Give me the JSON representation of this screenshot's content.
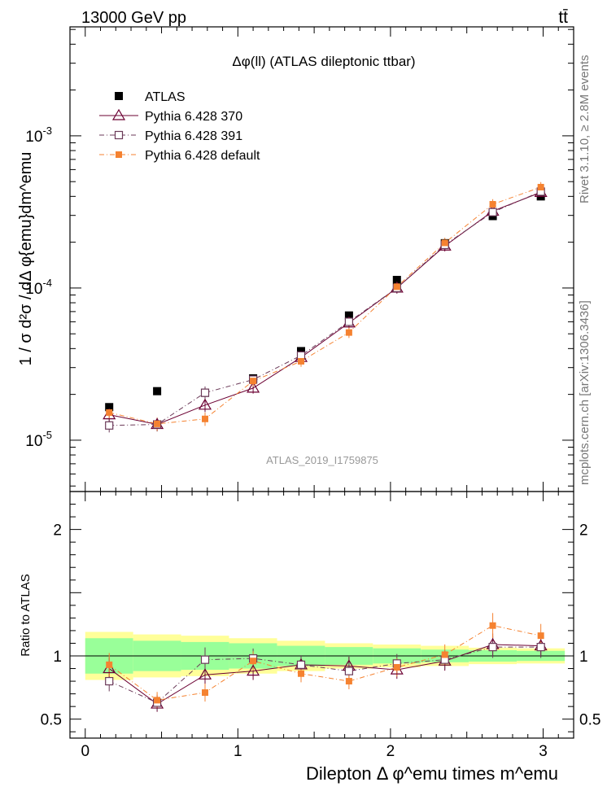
{
  "header": {
    "energy_label": "13000 GeV pp",
    "process_label": "tt̄"
  },
  "side_labels": {
    "rivet": "Rivet 3.1.10, ≥ 2.8M events",
    "mcplots": "mcplots.cern.ch [arXiv:1306.3436]"
  },
  "chart_data": {
    "type": "scatter",
    "title": "Δφ(ll) (ATLAS dileptonic ttbar)",
    "watermark": "ATLAS_2019_I1759875",
    "ylabel": "1 / σ d²σ / dΔ φ{emu}dm^emu",
    "ratio_ylabel": "Ratio to ATLAS",
    "xlabel": "Dilepton Δ φ^emu times m^emu",
    "xlim": [
      -0.1,
      3.2
    ],
    "ylim": [
      4.6e-06,
      0.0052
    ],
    "ratio_ylim": [
      0.35,
      2.3
    ],
    "x_ticks": [
      0,
      1,
      2,
      3
    ],
    "x_tick_labels": [
      "0",
      "1",
      "2",
      "3"
    ],
    "y_tick_labels": [
      "10^-5",
      "10^-4",
      "10^-3"
    ],
    "ratio_ticks": [
      0.5,
      1,
      2
    ],
    "ratio_tick_labels": [
      "0.5",
      "1",
      "2"
    ],
    "x": [
      0.157,
      0.471,
      0.785,
      1.1,
      1.414,
      1.728,
      2.042,
      2.356,
      2.67,
      2.985
    ],
    "bin_edges": [
      0,
      0.314,
      0.628,
      0.942,
      1.257,
      1.571,
      1.885,
      2.199,
      2.513,
      2.827,
      3.142
    ],
    "band_inner": [
      0.14,
      0.12,
      0.11,
      0.1,
      0.08,
      0.07,
      0.06,
      0.05,
      0.045,
      0.04
    ],
    "band_outer": [
      0.19,
      0.17,
      0.16,
      0.14,
      0.12,
      0.1,
      0.09,
      0.08,
      0.065,
      0.06
    ],
    "series": [
      {
        "name": "ATLAS",
        "marker": "filled-square",
        "color": "#000000",
        "values": [
          1.65e-05,
          2.1e-05,
          2.05e-05,
          2.55e-05,
          3.85e-05,
          6.6e-05,
          0.000113,
          0.000197,
          0.000297,
          0.0004
        ]
      },
      {
        "name": "Pythia 6.428 370",
        "marker": "open-triangle",
        "color": "#6b0032",
        "line": "solid",
        "values": [
          1.47e-05,
          1.27e-05,
          1.7e-05,
          2.2e-05,
          3.5e-05,
          5.9e-05,
          0.0001,
          0.000189,
          0.00032,
          0.000425
        ],
        "ratio": [
          0.9,
          0.62,
          0.85,
          0.88,
          0.93,
          0.92,
          0.89,
          0.96,
          1.09,
          1.08
        ]
      },
      {
        "name": "Pythia 6.428 391",
        "marker": "open-square",
        "color": "#6b3a58",
        "line": "dashdot",
        "values": [
          1.25e-05,
          1.27e-05,
          2.05e-05,
          2.5e-05,
          3.6e-05,
          6e-05,
          0.0001,
          0.000192,
          0.000315,
          0.00043
        ],
        "ratio": [
          0.8,
          0.63,
          0.97,
          0.98,
          0.93,
          0.88,
          0.94,
          0.97,
          1.07,
          1.07
        ]
      },
      {
        "name": "Pythia 6.428 default",
        "marker": "filled-square-small",
        "color": "#f58230",
        "line": "dashdot",
        "values": [
          1.52e-05,
          1.28e-05,
          1.38e-05,
          2.45e-05,
          3.3e-05,
          5.1e-05,
          0.000102,
          0.000198,
          0.000355,
          0.00046
        ],
        "ratio": [
          0.93,
          0.65,
          0.71,
          0.96,
          0.86,
          0.8,
          0.91,
          1.01,
          1.24,
          1.16
        ]
      }
    ]
  }
}
